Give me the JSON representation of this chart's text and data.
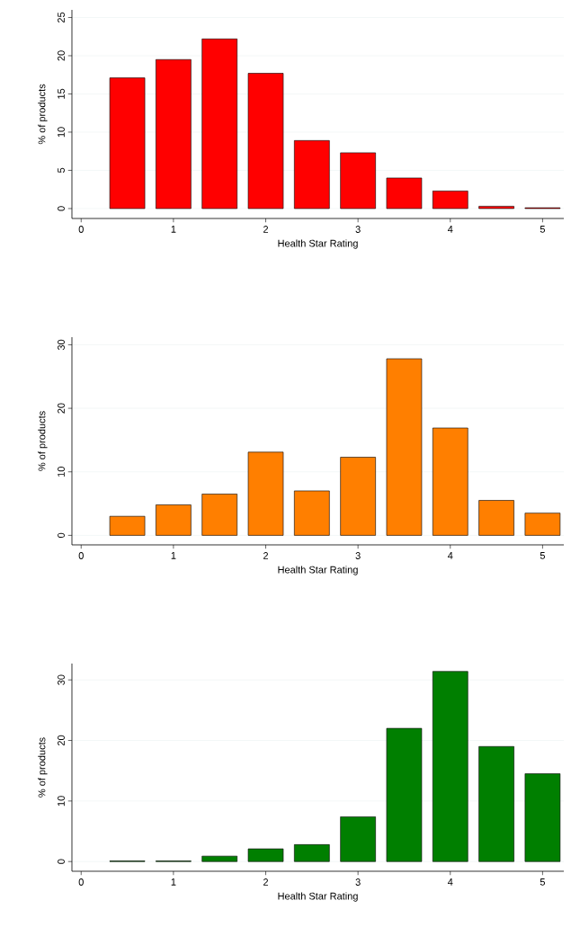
{
  "chart_data": [
    {
      "type": "bar",
      "xlabel": "Health Star Rating",
      "ylabel": "% of products",
      "x": [
        0.5,
        1,
        1.5,
        2,
        2.5,
        3,
        3.5,
        4,
        4.5,
        5
      ],
      "values": [
        17.1,
        19.5,
        22.2,
        17.7,
        8.9,
        7.3,
        4.0,
        2.3,
        0.3,
        0.1
      ],
      "color": "#ff0000",
      "xlim": [
        -0.1,
        5.23
      ],
      "ylim": [
        -1.3,
        26
      ],
      "xticks": [
        0,
        1,
        2,
        3,
        4,
        5
      ],
      "yticks": [
        0,
        5,
        10,
        15,
        20,
        25
      ],
      "grid": "y"
    },
    {
      "type": "bar",
      "xlabel": "Health Star Rating",
      "ylabel": "% of products",
      "x": [
        0.5,
        1,
        1.5,
        2,
        2.5,
        3,
        3.5,
        4,
        4.5,
        5
      ],
      "values": [
        3.0,
        4.8,
        6.5,
        13.1,
        7.0,
        12.3,
        27.8,
        16.9,
        5.5,
        3.5
      ],
      "color": "#ff7f00",
      "xlim": [
        -0.1,
        5.23
      ],
      "ylim": [
        -1.5,
        31.2
      ],
      "xticks": [
        0,
        1,
        2,
        3,
        4,
        5
      ],
      "yticks": [
        0,
        10,
        20,
        30
      ],
      "grid": "y"
    },
    {
      "type": "bar",
      "xlabel": "Health Star Rating",
      "ylabel": "% of products",
      "x": [
        0.5,
        1,
        1.5,
        2,
        2.5,
        3,
        3.5,
        4,
        4.5,
        5
      ],
      "values": [
        0.1,
        0.1,
        0.9,
        2.1,
        2.8,
        7.4,
        22.0,
        31.4,
        19.0,
        14.5
      ],
      "color": "#007f00",
      "xlim": [
        -0.1,
        5.23
      ],
      "ylim": [
        -1.6,
        32.7
      ],
      "xticks": [
        0,
        1,
        2,
        3,
        4,
        5
      ],
      "yticks": [
        0,
        10,
        20,
        30
      ],
      "grid": "y"
    }
  ]
}
